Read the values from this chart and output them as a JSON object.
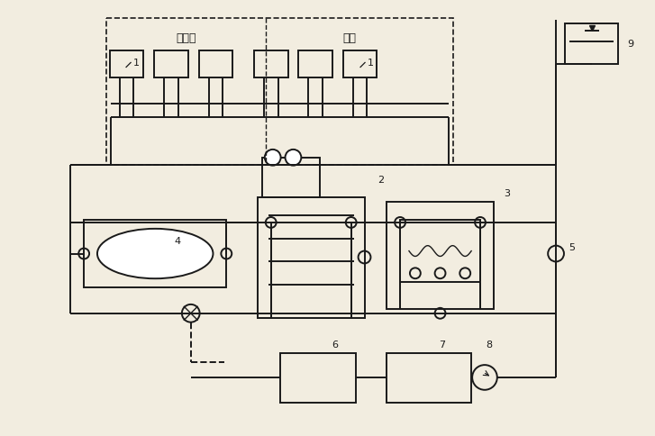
{
  "bg_color": "#f2ede0",
  "line_color": "#1a1a1a",
  "fig_width": 7.27,
  "fig_height": 4.85,
  "dpi": 100
}
